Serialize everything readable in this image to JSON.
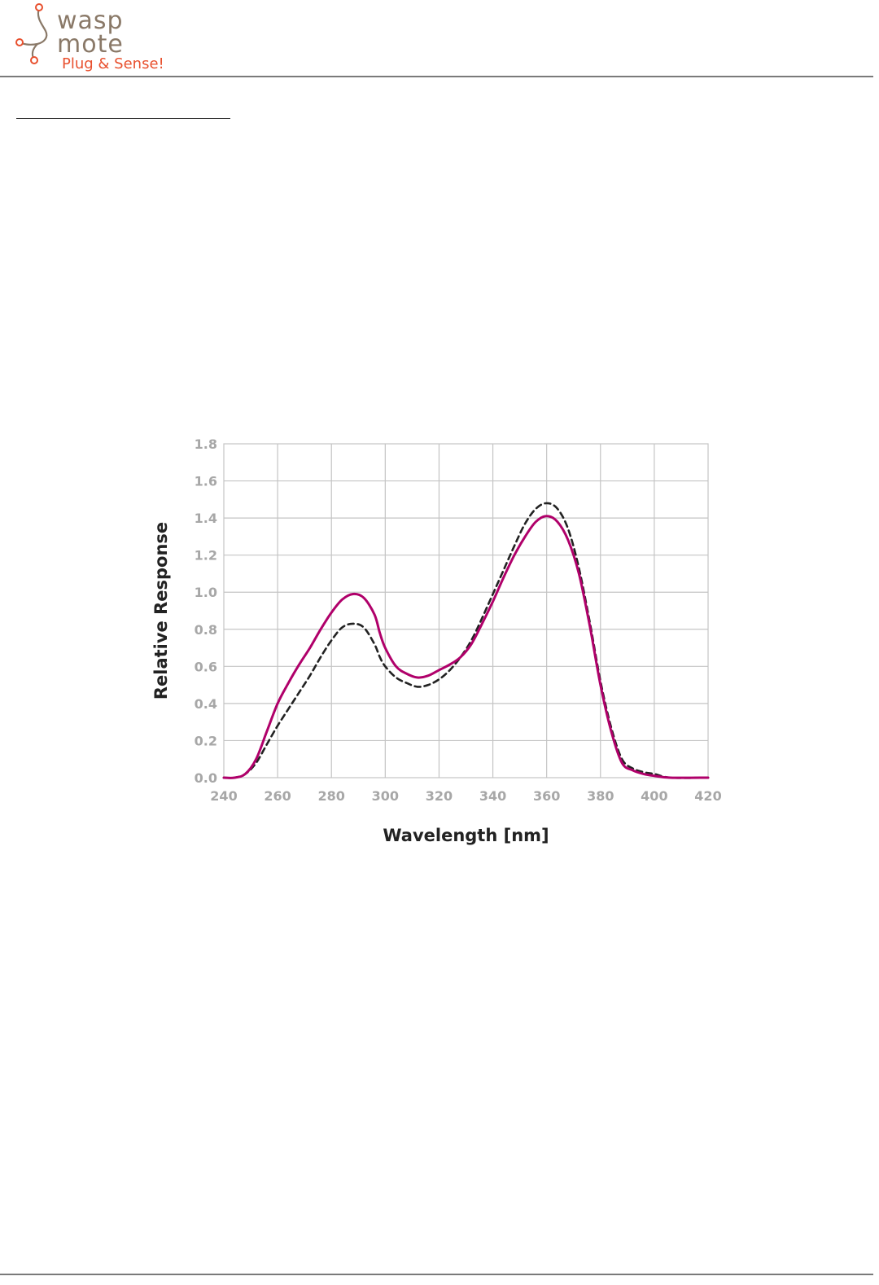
{
  "header": {
    "logo": {
      "name": "waspmote-logo",
      "line1": "wasp",
      "line2": "mote",
      "tagline": "Plug & Sense!",
      "colors": {
        "wordmark": "#8a7968",
        "tagline": "#e8502e"
      }
    }
  },
  "chart_data": {
    "type": "line",
    "title": "",
    "xlabel": "Wavelength [nm]",
    "ylabel": "Relative Response",
    "xlim": [
      240,
      420
    ],
    "ylim": [
      0.0,
      1.8
    ],
    "x_ticks": [
      "240",
      "260",
      "280",
      "300",
      "320",
      "340",
      "360",
      "380",
      "400",
      "420"
    ],
    "y_ticks": [
      "0.0",
      "0.2",
      "0.4",
      "0.6",
      "0.8",
      "1.0",
      "1.2",
      "1.4",
      "1.6",
      "1.8"
    ],
    "grid": true,
    "legend": "none",
    "series": [
      {
        "style": "solid",
        "color": "#b0006a",
        "points": [
          [
            240,
            0.0
          ],
          [
            244,
            0.0
          ],
          [
            248,
            0.02
          ],
          [
            252,
            0.1
          ],
          [
            256,
            0.25
          ],
          [
            260,
            0.4
          ],
          [
            264,
            0.51
          ],
          [
            268,
            0.61
          ],
          [
            272,
            0.7
          ],
          [
            276,
            0.8
          ],
          [
            280,
            0.89
          ],
          [
            284,
            0.96
          ],
          [
            288,
            0.99
          ],
          [
            292,
            0.97
          ],
          [
            296,
            0.88
          ],
          [
            298,
            0.78
          ],
          [
            300,
            0.7
          ],
          [
            304,
            0.6
          ],
          [
            308,
            0.56
          ],
          [
            312,
            0.54
          ],
          [
            316,
            0.55
          ],
          [
            320,
            0.58
          ],
          [
            324,
            0.61
          ],
          [
            328,
            0.65
          ],
          [
            332,
            0.72
          ],
          [
            336,
            0.83
          ],
          [
            340,
            0.95
          ],
          [
            344,
            1.08
          ],
          [
            348,
            1.2
          ],
          [
            352,
            1.3
          ],
          [
            356,
            1.38
          ],
          [
            360,
            1.41
          ],
          [
            364,
            1.38
          ],
          [
            368,
            1.28
          ],
          [
            372,
            1.1
          ],
          [
            376,
            0.82
          ],
          [
            380,
            0.5
          ],
          [
            384,
            0.25
          ],
          [
            388,
            0.08
          ],
          [
            392,
            0.04
          ],
          [
            396,
            0.02
          ],
          [
            400,
            0.01
          ],
          [
            406,
            0.0
          ],
          [
            420,
            0.0
          ]
        ]
      },
      {
        "style": "dashed",
        "color": "#222222",
        "points": [
          [
            240,
            0.0
          ],
          [
            244,
            0.0
          ],
          [
            248,
            0.02
          ],
          [
            252,
            0.08
          ],
          [
            256,
            0.18
          ],
          [
            260,
            0.28
          ],
          [
            264,
            0.37
          ],
          [
            268,
            0.46
          ],
          [
            272,
            0.55
          ],
          [
            276,
            0.65
          ],
          [
            280,
            0.74
          ],
          [
            284,
            0.81
          ],
          [
            288,
            0.83
          ],
          [
            292,
            0.81
          ],
          [
            296,
            0.72
          ],
          [
            298,
            0.65
          ],
          [
            300,
            0.6
          ],
          [
            304,
            0.54
          ],
          [
            308,
            0.51
          ],
          [
            312,
            0.49
          ],
          [
            316,
            0.5
          ],
          [
            320,
            0.53
          ],
          [
            324,
            0.58
          ],
          [
            328,
            0.65
          ],
          [
            332,
            0.74
          ],
          [
            336,
            0.86
          ],
          [
            340,
            0.99
          ],
          [
            344,
            1.12
          ],
          [
            348,
            1.25
          ],
          [
            352,
            1.37
          ],
          [
            356,
            1.45
          ],
          [
            360,
            1.48
          ],
          [
            364,
            1.45
          ],
          [
            368,
            1.34
          ],
          [
            372,
            1.13
          ],
          [
            376,
            0.84
          ],
          [
            380,
            0.52
          ],
          [
            384,
            0.27
          ],
          [
            388,
            0.1
          ],
          [
            392,
            0.05
          ],
          [
            396,
            0.03
          ],
          [
            400,
            0.02
          ],
          [
            406,
            0.0
          ],
          [
            420,
            0.0
          ]
        ]
      }
    ]
  }
}
